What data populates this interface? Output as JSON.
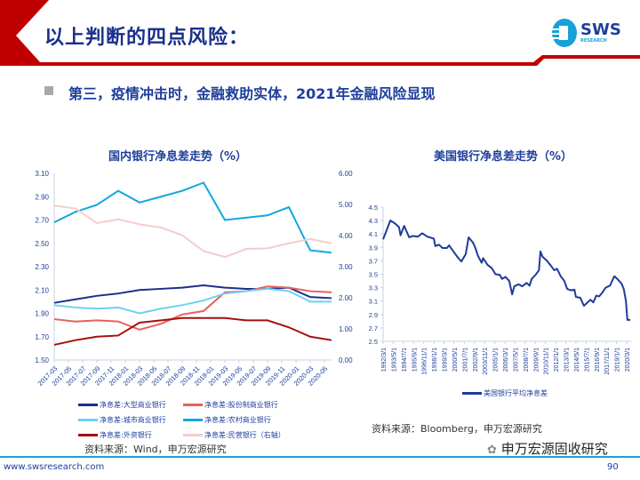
{
  "header": {
    "title": "以上判断的四点风险：",
    "logo_text": "SWS",
    "logo_subtext": "RESEARCH"
  },
  "subtitle": "第三，疫情冲击时，金融救助实体，2021年金融风险显现",
  "colors": {
    "brand_red": "#c00000",
    "brand_blue": "#1a2f8a",
    "footer_line": "#1aa0d8"
  },
  "chart_data": [
    {
      "type": "line",
      "title": "国内银行净息差走势（%）",
      "x_tick_labels": [
        "2017-03",
        "2017-05",
        "2017-07",
        "2017-09",
        "2017-11",
        "2018-01",
        "2018-03",
        "2018-05",
        "2018-07",
        "2018-09",
        "2018-11",
        "2019-01",
        "2019-03",
        "2019-05",
        "2019-07",
        "2019-09",
        "2019-11",
        "2020-01",
        "2020-03",
        "2020-05"
      ],
      "x": [
        "2017-03",
        "2017-06",
        "2017-09",
        "2017-12",
        "2018-03",
        "2018-06",
        "2018-09",
        "2018-12",
        "2019-03",
        "2019-06",
        "2019-09",
        "2019-12",
        "2020-03",
        "2020-06"
      ],
      "ylim": [
        1.5,
        3.1
      ],
      "y_ticks": [
        "1.50",
        "1.70",
        "1.90",
        "2.10",
        "2.30",
        "2.50",
        "2.70",
        "2.90",
        "3.10"
      ],
      "y2lim": [
        0,
        6
      ],
      "y2_ticks": [
        "0.00",
        "1.00",
        "2.00",
        "3.00",
        "4.00",
        "5.00",
        "6.00"
      ],
      "legend": "bottom",
      "series": [
        {
          "name": "净息差:大型商业银行",
          "color": "#1a2f8a",
          "axis": "left",
          "values": [
            1.99,
            2.02,
            2.05,
            2.07,
            2.1,
            2.11,
            2.12,
            2.14,
            2.12,
            2.11,
            2.11,
            2.12,
            2.04,
            2.03
          ]
        },
        {
          "name": "净息差:股份制商业银行",
          "color": "#e8605a",
          "axis": "left",
          "values": [
            1.85,
            1.83,
            1.84,
            1.83,
            1.76,
            1.81,
            1.89,
            1.92,
            2.08,
            2.09,
            2.13,
            2.12,
            2.09,
            2.08
          ]
        },
        {
          "name": "净息差:城市商业银行",
          "color": "#6fd0f5",
          "axis": "left",
          "values": [
            1.97,
            1.95,
            1.94,
            1.95,
            1.9,
            1.94,
            1.97,
            2.01,
            2.07,
            2.09,
            2.11,
            2.09,
            2.0,
            2.0
          ]
        },
        {
          "name": "净息差:农村商业银行",
          "color": "#12a8e0",
          "axis": "left",
          "values": [
            2.68,
            2.77,
            2.83,
            2.95,
            2.85,
            2.9,
            2.95,
            3.02,
            2.7,
            2.72,
            2.74,
            2.81,
            2.44,
            2.42
          ]
        },
        {
          "name": "净息差:外资银行",
          "color": "#a50f0f",
          "axis": "left",
          "values": [
            1.63,
            1.67,
            1.7,
            1.71,
            1.82,
            1.84,
            1.86,
            1.86,
            1.86,
            1.84,
            1.84,
            1.78,
            1.7,
            1.67
          ]
        },
        {
          "name": "净息差:民营银行（右轴）",
          "color": "#f6cccc",
          "axis": "right",
          "values": [
            4.96,
            4.87,
            4.4,
            4.52,
            4.36,
            4.26,
            4.01,
            3.5,
            3.31,
            3.57,
            3.59,
            3.75,
            3.89,
            3.75
          ]
        }
      ],
      "source": "资料来源：Wind，申万宏源研究"
    },
    {
      "type": "line",
      "title": "美国银行净息差走势（%）",
      "x_tick_labels": [
        "1992/3/1",
        "1993/5/1",
        "1994/7/1",
        "1995/9/1",
        "1996/11/1",
        "1998/1/1",
        "1999/3/1",
        "2000/5/1",
        "2001/7/1",
        "2002/9/1",
        "2003/11/1",
        "2005/1/1",
        "2006/3/1",
        "2007/5/1",
        "2008/7/1",
        "2009/9/1",
        "2010/11/1",
        "2012/1/1",
        "2013/3/1",
        "2014/5/1",
        "2015/7/1",
        "2016/9/1",
        "2017/11/1",
        "2019/1/1",
        "2020/3/1"
      ],
      "ylim": [
        2.5,
        4.5
      ],
      "y_ticks": [
        "2.5",
        "2.7",
        "2.9",
        "3.1",
        "3.3",
        "3.5",
        "3.7",
        "3.9",
        "4.1",
        "4.3",
        "4.5"
      ],
      "legend": "bottom",
      "series": [
        {
          "name": "美国银行平均净息差",
          "color": "#1f3b9a",
          "points": [
            [
              "1992-03",
              4.02
            ],
            [
              "1993-01",
              4.3
            ],
            [
              "1993-07",
              4.26
            ],
            [
              "1994-01",
              4.2
            ],
            [
              "1994-03",
              4.08
            ],
            [
              "1994-08",
              4.22
            ],
            [
              "1995-03",
              4.05
            ],
            [
              "1995-08",
              4.07
            ],
            [
              "1996-03",
              4.06
            ],
            [
              "1996-09",
              4.11
            ],
            [
              "1997-04",
              4.06
            ],
            [
              "1998-01",
              4.03
            ],
            [
              "1998-03",
              3.92
            ],
            [
              "1998-08",
              3.94
            ],
            [
              "1999-01",
              3.89
            ],
            [
              "1999-07",
              3.89
            ],
            [
              "1999-10",
              3.93
            ],
            [
              "2000-04",
              3.84
            ],
            [
              "2000-10",
              3.75
            ],
            [
              "2001-03",
              3.69
            ],
            [
              "2001-09",
              3.8
            ],
            [
              "2002-01",
              4.05
            ],
            [
              "2002-07",
              3.97
            ],
            [
              "2002-10",
              3.9
            ],
            [
              "2003-02",
              3.77
            ],
            [
              "2003-07",
              3.67
            ],
            [
              "2003-09",
              3.74
            ],
            [
              "2004-03",
              3.64
            ],
            [
              "2004-09",
              3.59
            ],
            [
              "2005-02",
              3.5
            ],
            [
              "2005-08",
              3.49
            ],
            [
              "2005-11",
              3.43
            ],
            [
              "2006-04",
              3.46
            ],
            [
              "2006-09",
              3.4
            ],
            [
              "2007-01",
              3.2
            ],
            [
              "2007-04",
              3.32
            ],
            [
              "2007-10",
              3.35
            ],
            [
              "2008-03",
              3.32
            ],
            [
              "2008-09",
              3.37
            ],
            [
              "2009-01",
              3.33
            ],
            [
              "2009-04",
              3.43
            ],
            [
              "2009-10",
              3.5
            ],
            [
              "2010-02",
              3.56
            ],
            [
              "2010-04",
              3.84
            ],
            [
              "2010-07",
              3.76
            ],
            [
              "2011-01",
              3.7
            ],
            [
              "2011-07",
              3.62
            ],
            [
              "2011-11",
              3.56
            ],
            [
              "2012-03",
              3.58
            ],
            [
              "2012-08",
              3.47
            ],
            [
              "2013-01",
              3.4
            ],
            [
              "2013-05",
              3.28
            ],
            [
              "2013-10",
              3.26
            ],
            [
              "2014-03",
              3.27
            ],
            [
              "2014-05",
              3.16
            ],
            [
              "2014-11",
              3.15
            ],
            [
              "2015-04",
              3.03
            ],
            [
              "2015-08",
              3.07
            ],
            [
              "2016-01",
              3.12
            ],
            [
              "2016-05",
              3.08
            ],
            [
              "2016-09",
              3.18
            ],
            [
              "2017-01",
              3.17
            ],
            [
              "2017-05",
              3.22
            ],
            [
              "2017-10",
              3.3
            ],
            [
              "2018-04",
              3.33
            ],
            [
              "2018-10",
              3.47
            ],
            [
              "2019-03",
              3.42
            ],
            [
              "2019-08",
              3.36
            ],
            [
              "2019-11",
              3.28
            ],
            [
              "2020-02",
              3.1
            ],
            [
              "2020-04",
              2.82
            ],
            [
              "2020-08",
              2.82
            ]
          ]
        }
      ],
      "source": "资料来源：Bloomberg，申万宏源研究"
    }
  ],
  "watermark": "申万宏源固收研究",
  "footer": {
    "url": "www.swsresearch.com",
    "page": "90"
  }
}
